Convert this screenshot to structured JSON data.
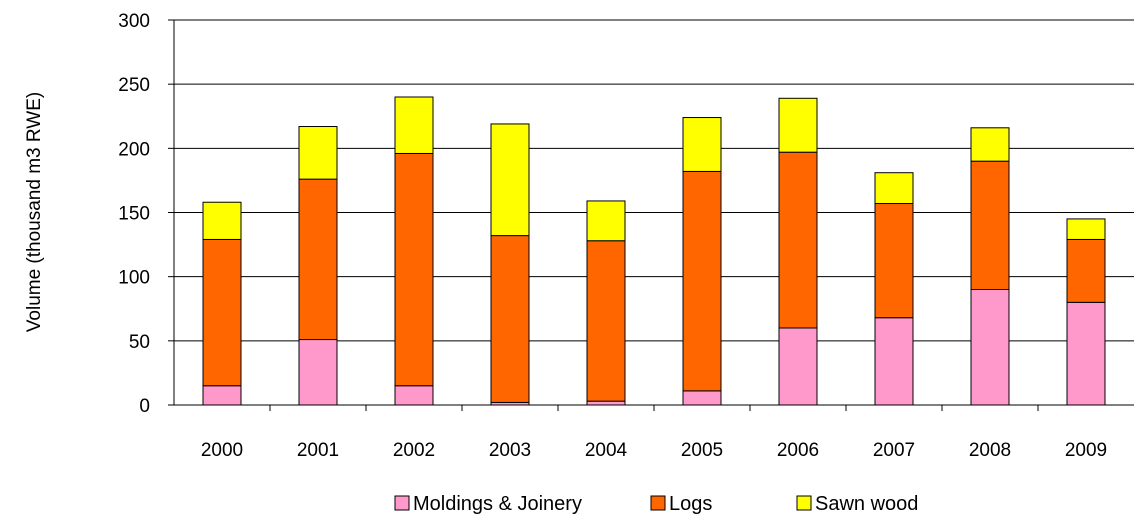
{
  "chart_data": {
    "type": "bar",
    "stacked": true,
    "categories": [
      "2000",
      "2001",
      "2002",
      "2003",
      "2004",
      "2005",
      "2006",
      "2007",
      "2008",
      "2009"
    ],
    "series": [
      {
        "name": "Moldings & Joinery",
        "color": "#ff99cc",
        "values": [
          15,
          51,
          15,
          2,
          3,
          11,
          60,
          68,
          90,
          80
        ]
      },
      {
        "name": "Logs",
        "color": "#ff6600",
        "values": [
          114,
          125,
          181,
          130,
          125,
          171,
          137,
          89,
          100,
          49
        ]
      },
      {
        "name": "Sawn wood",
        "color": "#ffff00",
        "values": [
          29,
          41,
          44,
          87,
          31,
          42,
          42,
          24,
          26,
          16
        ]
      }
    ],
    "ylabel": "Volume (thousand  m3  RWE)",
    "xlabel": "",
    "ylim": [
      0,
      300
    ],
    "yticks": [
      0,
      50,
      100,
      150,
      200,
      250,
      300
    ],
    "grid": true,
    "legend": "bottom"
  }
}
